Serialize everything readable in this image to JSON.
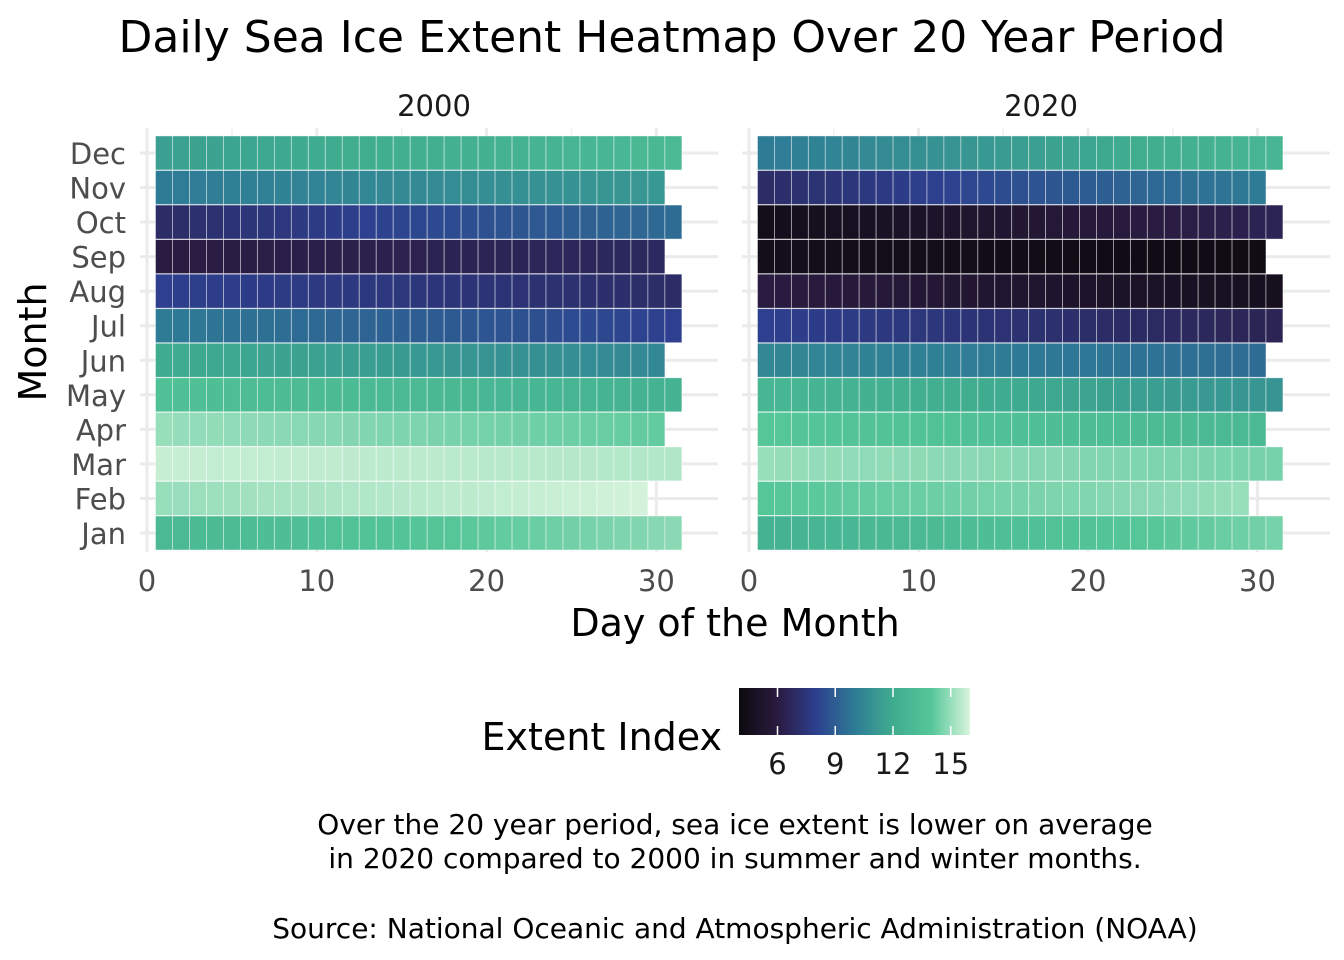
{
  "chart_data": {
    "type": "heatmap",
    "title": "Daily Sea Ice Extent Heatmap Over 20 Year Period",
    "xlabel": "Day of the Month",
    "ylabel": "Month",
    "xlim": [
      0,
      32
    ],
    "x_ticks": [
      0,
      10,
      20,
      30
    ],
    "months": [
      "Jan",
      "Feb",
      "Mar",
      "Apr",
      "May",
      "Jun",
      "Jul",
      "Aug",
      "Sep",
      "Oct",
      "Nov",
      "Dec"
    ],
    "days_in_month": [
      31,
      29,
      31,
      30,
      31,
      30,
      31,
      31,
      30,
      31,
      30,
      31
    ],
    "grid": true,
    "colorscale": {
      "name": "Extent Index",
      "min": 4,
      "max": 16,
      "ticks": [
        6,
        9,
        12,
        15
      ],
      "stops": [
        "#0c0a0f",
        "#2a1b40",
        "#2d3f8e",
        "#2e7b96",
        "#3fac8f",
        "#55c698",
        "#d9f5dd"
      ]
    },
    "legend_position": "bottom",
    "panels": [
      {
        "label": "2000",
        "monthly_start_end": [
          [
            13.0,
            14.8
          ],
          [
            15.0,
            15.9
          ],
          [
            15.7,
            15.4
          ],
          [
            15.0,
            14.2
          ],
          [
            13.5,
            12.5
          ],
          [
            12.0,
            10.5
          ],
          [
            10.0,
            8.0
          ],
          [
            8.0,
            7.0
          ],
          [
            6.0,
            6.8
          ],
          [
            7.0,
            9.5
          ],
          [
            10.0,
            11.2
          ],
          [
            11.5,
            13.0
          ]
        ]
      },
      {
        "label": "2020",
        "monthly_start_end": [
          [
            12.5,
            14.5
          ],
          [
            14.0,
            15.0
          ],
          [
            15.0,
            14.5
          ],
          [
            14.0,
            13.0
          ],
          [
            12.8,
            11.0
          ],
          [
            10.5,
            9.5
          ],
          [
            8.0,
            6.5
          ],
          [
            6.0,
            4.6
          ],
          [
            4.5,
            4.2
          ],
          [
            4.4,
            6.5
          ],
          [
            7.0,
            10.0
          ],
          [
            10.0,
            12.8
          ]
        ]
      }
    ]
  },
  "caption": {
    "line1": "Over the 20 year period, sea ice extent is lower on average",
    "line2": "in 2020 compared to 2000 in summer and winter months.",
    "source": "Source: National Oceanic and Atmospheric Administration (NOAA)"
  }
}
